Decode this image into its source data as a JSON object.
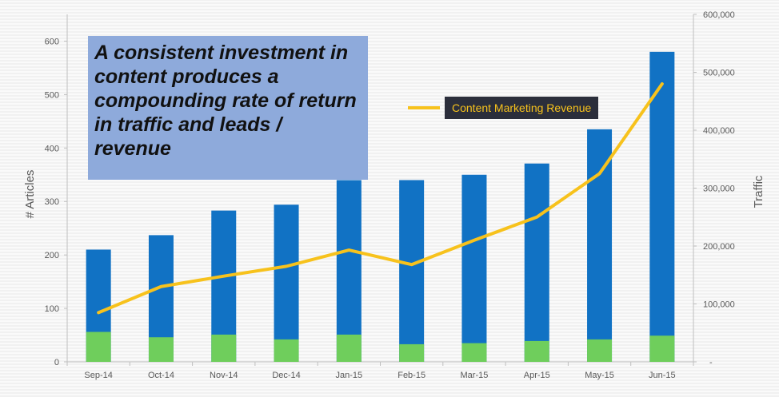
{
  "chart_data": {
    "type": "bar",
    "categories": [
      "Sep-14",
      "Oct-14",
      "Nov-14",
      "Dec-14",
      "Jan-15",
      "Feb-15",
      "Mar-15",
      "Apr-15",
      "May-15",
      "Jun-15"
    ],
    "series": [
      {
        "axis": "left",
        "color": "#1172c4",
        "values": [
          210,
          237,
          283,
          294,
          340,
          340,
          350,
          371,
          435,
          580
        ]
      },
      {
        "axis": "left",
        "color": "#6fce5c",
        "values": [
          56,
          46,
          51,
          42,
          51,
          33,
          35,
          39,
          42,
          49
        ]
      },
      {
        "name": "Content Marketing Revenue",
        "axis": "right",
        "type": "line",
        "color": "#f7c21c",
        "values": [
          85000,
          130000,
          148000,
          165000,
          193000,
          168000,
          210000,
          250000,
          325000,
          480000
        ]
      }
    ],
    "ylabel": "# Articles",
    "y2label": "Traffic",
    "ylim": [
      0,
      650
    ],
    "y2lim": [
      0,
      600000
    ],
    "yticks": [
      "0",
      "100",
      "200",
      "300",
      "400",
      "500",
      "600"
    ],
    "y2ticks": [
      "-",
      "100,000",
      "200,000",
      "300,000",
      "400,000",
      "500,000",
      "600,000"
    ],
    "grid": false,
    "legend_position": "top-right"
  },
  "callout": {
    "text": "A consistent investment in content produces a compounding rate of return in traffic and leads / revenue"
  }
}
